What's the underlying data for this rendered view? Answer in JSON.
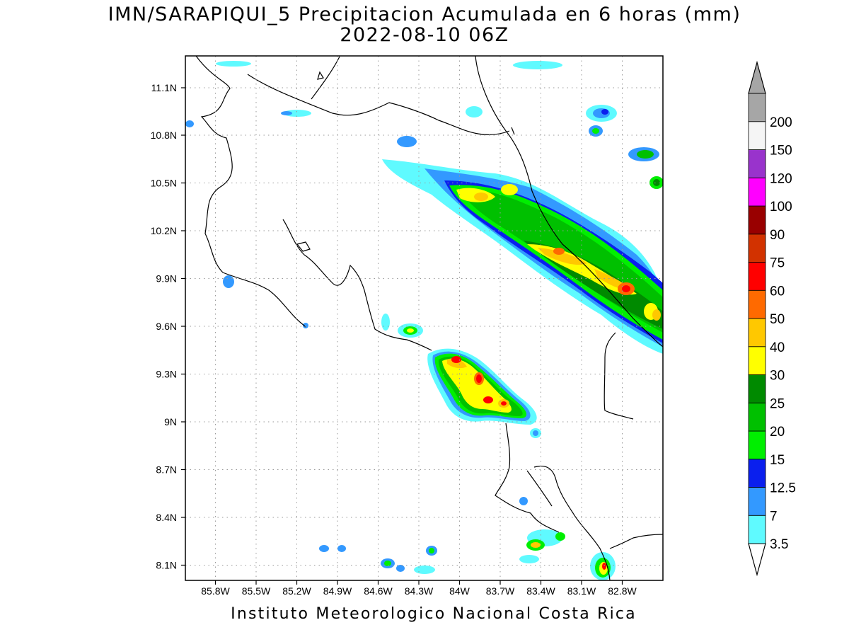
{
  "title": {
    "line1": "IMN/SARAPIQUI_5 Precipitacion Acumulada en 6 horas (mm)",
    "line2": "2022-08-10 06Z"
  },
  "footer": "Instituto Meteorologico Nacional Costa Rica",
  "map": {
    "lon_range": [
      -86.0,
      -82.5
    ],
    "lat_range": [
      8.0,
      11.2
    ],
    "lon_ticks": [
      "85.8W",
      "85.5W",
      "85.2W",
      "84.9W",
      "84.6W",
      "84.3W",
      "84W",
      "83.7W",
      "83.4W",
      "83.1W",
      "82.8W"
    ],
    "lat_ticks": [
      "11.1N",
      "10.8N",
      "10.5N",
      "10.2N",
      "9.9N",
      "9.6N",
      "9.3N",
      "9N",
      "8.7N",
      "8.4N",
      "8.1N"
    ],
    "grid": "dotted"
  },
  "colorbar": {
    "labels": [
      "3.5",
      "7",
      "12.5",
      "15",
      "20",
      "25",
      "30",
      "40",
      "50",
      "60",
      "75",
      "90",
      "100",
      "120",
      "150",
      "200"
    ],
    "colors": [
      "#5ffaff",
      "#3399ff",
      "#0a1fee",
      "#00ef00",
      "#00c000",
      "#008a00",
      "#ffff00",
      "#ffc800",
      "#ff6a00",
      "#ff0000",
      "#d23200",
      "#990000",
      "#ff00ff",
      "#9933cc",
      "#f5f5f5",
      "#a6a6a6"
    ]
  }
}
